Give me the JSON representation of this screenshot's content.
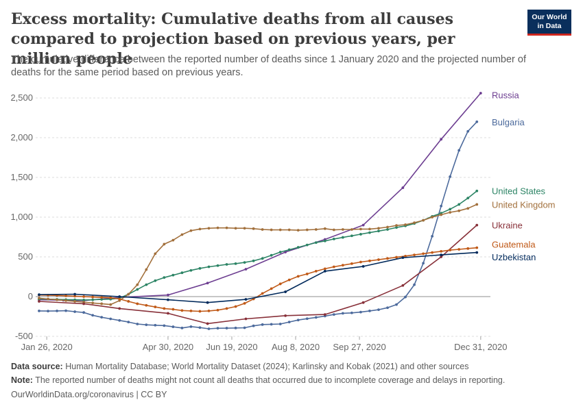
{
  "header": {
    "title": "Excess mortality: Cumulative deaths from all causes compared to projection based on previous years, per million people",
    "subtitle": "The cumulative difference between the reported number of deaths since 1 January 2020 and the projected number of deaths for the same period based on previous years.",
    "logo_line1": "Our World",
    "logo_line2": "in Data"
  },
  "footer": {
    "source_label": "Data source:",
    "source_text": "Human Mortality Database; World Mortality Dataset (2024); Karlinsky and Kobak (2021) and other sources",
    "note_label": "Note:",
    "note_text": "The reported number of deaths might not count all deaths that occurred due to incomplete coverage and delays in reporting.",
    "credit": "OurWorldinData.org/coronavirus | CC BY"
  },
  "chart_data": {
    "type": "line",
    "title": "Excess mortality: Cumulative deaths from all causes compared to projection based on previous years, per million people",
    "xlabel": "",
    "ylabel": "",
    "x_start_day": 19,
    "x_end_day": 371,
    "ylim": [
      -500,
      2500
    ],
    "yticks": [
      {
        "value": -500,
        "label": "-500"
      },
      {
        "value": 0,
        "label": "0"
      },
      {
        "value": 500,
        "label": "500"
      },
      {
        "value": 1000,
        "label": "1,000"
      },
      {
        "value": 1500,
        "label": "1,500"
      },
      {
        "value": 2000,
        "label": "2,000"
      },
      {
        "value": 2500,
        "label": "2,500"
      }
    ],
    "xticks": [
      {
        "day": 25,
        "label": "Jan 26, 2020"
      },
      {
        "day": 120,
        "label": "Apr 30, 2020"
      },
      {
        "day": 170,
        "label": "Jun 19, 2020"
      },
      {
        "day": 220,
        "label": "Aug 8, 2020"
      },
      {
        "day": 270,
        "label": "Sep 27, 2020"
      },
      {
        "day": 365,
        "label": "Dec 31, 2020"
      }
    ],
    "series": [
      {
        "name": "Russia",
        "color": "#6d3e91",
        "points": [
          [
            19,
            -40
          ],
          [
            38,
            -45
          ],
          [
            54,
            -50
          ],
          [
            82,
            -10
          ],
          [
            120,
            20
          ],
          [
            151,
            170
          ],
          [
            181,
            345
          ],
          [
            212,
            560
          ],
          [
            243,
            720
          ],
          [
            273,
            900
          ],
          [
            304,
            1370
          ],
          [
            334,
            1980
          ],
          [
            365,
            2560
          ]
        ]
      },
      {
        "name": "Bulgaria",
        "color": "#4c6a9c",
        "points": [
          [
            19,
            -180
          ],
          [
            26,
            -182
          ],
          [
            33,
            -180
          ],
          [
            40,
            -178
          ],
          [
            47,
            -190
          ],
          [
            54,
            -200
          ],
          [
            61,
            -235
          ],
          [
            68,
            -260
          ],
          [
            75,
            -280
          ],
          [
            82,
            -300
          ],
          [
            89,
            -320
          ],
          [
            96,
            -345
          ],
          [
            103,
            -355
          ],
          [
            110,
            -360
          ],
          [
            117,
            -365
          ],
          [
            124,
            -380
          ],
          [
            131,
            -395
          ],
          [
            138,
            -378
          ],
          [
            145,
            -390
          ],
          [
            152,
            -405
          ],
          [
            159,
            -398
          ],
          [
            166,
            -397
          ],
          [
            173,
            -395
          ],
          [
            180,
            -392
          ],
          [
            187,
            -368
          ],
          [
            194,
            -352
          ],
          [
            201,
            -348
          ],
          [
            208,
            -345
          ],
          [
            215,
            -320
          ],
          [
            222,
            -295
          ],
          [
            229,
            -278
          ],
          [
            236,
            -262
          ],
          [
            243,
            -245
          ],
          [
            250,
            -225
          ],
          [
            257,
            -210
          ],
          [
            264,
            -205
          ],
          [
            271,
            -195
          ],
          [
            278,
            -180
          ],
          [
            285,
            -165
          ],
          [
            292,
            -140
          ],
          [
            299,
            -100
          ],
          [
            306,
            -5
          ],
          [
            313,
            150
          ],
          [
            320,
            420
          ],
          [
            327,
            760
          ],
          [
            334,
            1140
          ],
          [
            341,
            1510
          ],
          [
            348,
            1840
          ],
          [
            355,
            2080
          ],
          [
            362,
            2200
          ]
        ]
      },
      {
        "name": "United States",
        "color": "#2c8465",
        "points": [
          [
            19,
            -30
          ],
          [
            26,
            -32
          ],
          [
            33,
            -35
          ],
          [
            40,
            -38
          ],
          [
            47,
            -40
          ],
          [
            54,
            -42
          ],
          [
            61,
            -40
          ],
          [
            68,
            -35
          ],
          [
            75,
            -32
          ],
          [
            82,
            -20
          ],
          [
            89,
            30
          ],
          [
            96,
            90
          ],
          [
            103,
            150
          ],
          [
            110,
            200
          ],
          [
            117,
            240
          ],
          [
            124,
            270
          ],
          [
            131,
            300
          ],
          [
            138,
            330
          ],
          [
            145,
            355
          ],
          [
            152,
            375
          ],
          [
            159,
            390
          ],
          [
            166,
            405
          ],
          [
            173,
            415
          ],
          [
            180,
            430
          ],
          [
            187,
            450
          ],
          [
            194,
            480
          ],
          [
            201,
            520
          ],
          [
            208,
            560
          ],
          [
            215,
            590
          ],
          [
            222,
            620
          ],
          [
            229,
            650
          ],
          [
            236,
            680
          ],
          [
            243,
            700
          ],
          [
            250,
            725
          ],
          [
            257,
            745
          ],
          [
            264,
            765
          ],
          [
            271,
            785
          ],
          [
            278,
            805
          ],
          [
            285,
            825
          ],
          [
            292,
            845
          ],
          [
            299,
            870
          ],
          [
            306,
            890
          ],
          [
            313,
            920
          ],
          [
            320,
            960
          ],
          [
            327,
            1010
          ],
          [
            334,
            1050
          ],
          [
            341,
            1100
          ],
          [
            348,
            1160
          ],
          [
            355,
            1240
          ],
          [
            362,
            1330
          ]
        ]
      },
      {
        "name": "United Kingdom",
        "color": "#a2703c",
        "points": [
          [
            19,
            -20
          ],
          [
            26,
            -30
          ],
          [
            33,
            -40
          ],
          [
            40,
            -50
          ],
          [
            47,
            -60
          ],
          [
            54,
            -70
          ],
          [
            61,
            -80
          ],
          [
            68,
            -90
          ],
          [
            75,
            -100
          ],
          [
            82,
            -50
          ],
          [
            89,
            30
          ],
          [
            96,
            150
          ],
          [
            103,
            340
          ],
          [
            110,
            540
          ],
          [
            117,
            660
          ],
          [
            124,
            710
          ],
          [
            131,
            780
          ],
          [
            138,
            830
          ],
          [
            145,
            850
          ],
          [
            152,
            860
          ],
          [
            159,
            865
          ],
          [
            166,
            865
          ],
          [
            173,
            860
          ],
          [
            180,
            860
          ],
          [
            187,
            855
          ],
          [
            194,
            845
          ],
          [
            201,
            840
          ],
          [
            208,
            840
          ],
          [
            215,
            840
          ],
          [
            222,
            835
          ],
          [
            229,
            840
          ],
          [
            236,
            845
          ],
          [
            243,
            855
          ],
          [
            250,
            840
          ],
          [
            257,
            845
          ],
          [
            264,
            845
          ],
          [
            271,
            850
          ],
          [
            278,
            850
          ],
          [
            285,
            860
          ],
          [
            292,
            875
          ],
          [
            299,
            895
          ],
          [
            306,
            905
          ],
          [
            313,
            930
          ],
          [
            320,
            960
          ],
          [
            327,
            1000
          ],
          [
            334,
            1030
          ],
          [
            341,
            1060
          ],
          [
            348,
            1080
          ],
          [
            355,
            1110
          ],
          [
            362,
            1160
          ]
        ]
      },
      {
        "name": "Ukraine",
        "color": "#883039",
        "points": [
          [
            19,
            -60
          ],
          [
            54,
            -90
          ],
          [
            82,
            -150
          ],
          [
            120,
            -210
          ],
          [
            151,
            -340
          ],
          [
            181,
            -280
          ],
          [
            212,
            -240
          ],
          [
            243,
            -225
          ],
          [
            273,
            -75
          ],
          [
            304,
            140
          ],
          [
            334,
            500
          ],
          [
            362,
            900
          ]
        ]
      },
      {
        "name": "Guatemala",
        "color": "#c05917",
        "points": [
          [
            19,
            20
          ],
          [
            26,
            18
          ],
          [
            33,
            15
          ],
          [
            40,
            10
          ],
          [
            47,
            5
          ],
          [
            54,
            0
          ],
          [
            61,
            -5
          ],
          [
            68,
            -10
          ],
          [
            75,
            -15
          ],
          [
            82,
            -30
          ],
          [
            89,
            -60
          ],
          [
            96,
            -90
          ],
          [
            103,
            -110
          ],
          [
            110,
            -130
          ],
          [
            117,
            -150
          ],
          [
            124,
            -160
          ],
          [
            131,
            -175
          ],
          [
            138,
            -180
          ],
          [
            145,
            -185
          ],
          [
            152,
            -180
          ],
          [
            159,
            -170
          ],
          [
            166,
            -150
          ],
          [
            173,
            -125
          ],
          [
            180,
            -85
          ],
          [
            187,
            -30
          ],
          [
            194,
            40
          ],
          [
            201,
            100
          ],
          [
            208,
            160
          ],
          [
            215,
            210
          ],
          [
            222,
            255
          ],
          [
            229,
            285
          ],
          [
            236,
            320
          ],
          [
            243,
            350
          ],
          [
            250,
            375
          ],
          [
            257,
            395
          ],
          [
            264,
            415
          ],
          [
            271,
            435
          ],
          [
            278,
            450
          ],
          [
            285,
            465
          ],
          [
            292,
            480
          ],
          [
            299,
            495
          ],
          [
            306,
            510
          ],
          [
            313,
            525
          ],
          [
            320,
            540
          ],
          [
            327,
            555
          ],
          [
            334,
            570
          ],
          [
            341,
            585
          ],
          [
            348,
            595
          ],
          [
            355,
            605
          ],
          [
            362,
            615
          ]
        ]
      },
      {
        "name": "Uzbekistan",
        "color": "#00295b",
        "points": [
          [
            19,
            25
          ],
          [
            47,
            30
          ],
          [
            82,
            0
          ],
          [
            120,
            -40
          ],
          [
            151,
            -75
          ],
          [
            181,
            -35
          ],
          [
            212,
            60
          ],
          [
            243,
            320
          ],
          [
            273,
            380
          ],
          [
            304,
            490
          ],
          [
            334,
            525
          ],
          [
            362,
            555
          ]
        ]
      }
    ],
    "end_labels": [
      {
        "name": "Russia",
        "label": "Russia",
        "color": "#6d3e91",
        "label_value": 2540
      },
      {
        "name": "Bulgaria",
        "label": "Bulgaria",
        "color": "#4c6a9c",
        "label_value": 2200
      },
      {
        "name": "United States",
        "label": "United States",
        "color": "#2c8465",
        "label_value": 1330
      },
      {
        "name": "United Kingdom",
        "label": "United Kingdom",
        "color": "#a2703c",
        "label_value": 1160
      },
      {
        "name": "Ukraine",
        "label": "Ukraine",
        "color": "#883039",
        "label_value": 900
      },
      {
        "name": "Guatemala",
        "label": "Guatemala",
        "color": "#c05917",
        "label_value": 660
      },
      {
        "name": "Uzbekistan",
        "label": "Uzbekistan",
        "color": "#00295b",
        "label_value": 500
      }
    ]
  }
}
